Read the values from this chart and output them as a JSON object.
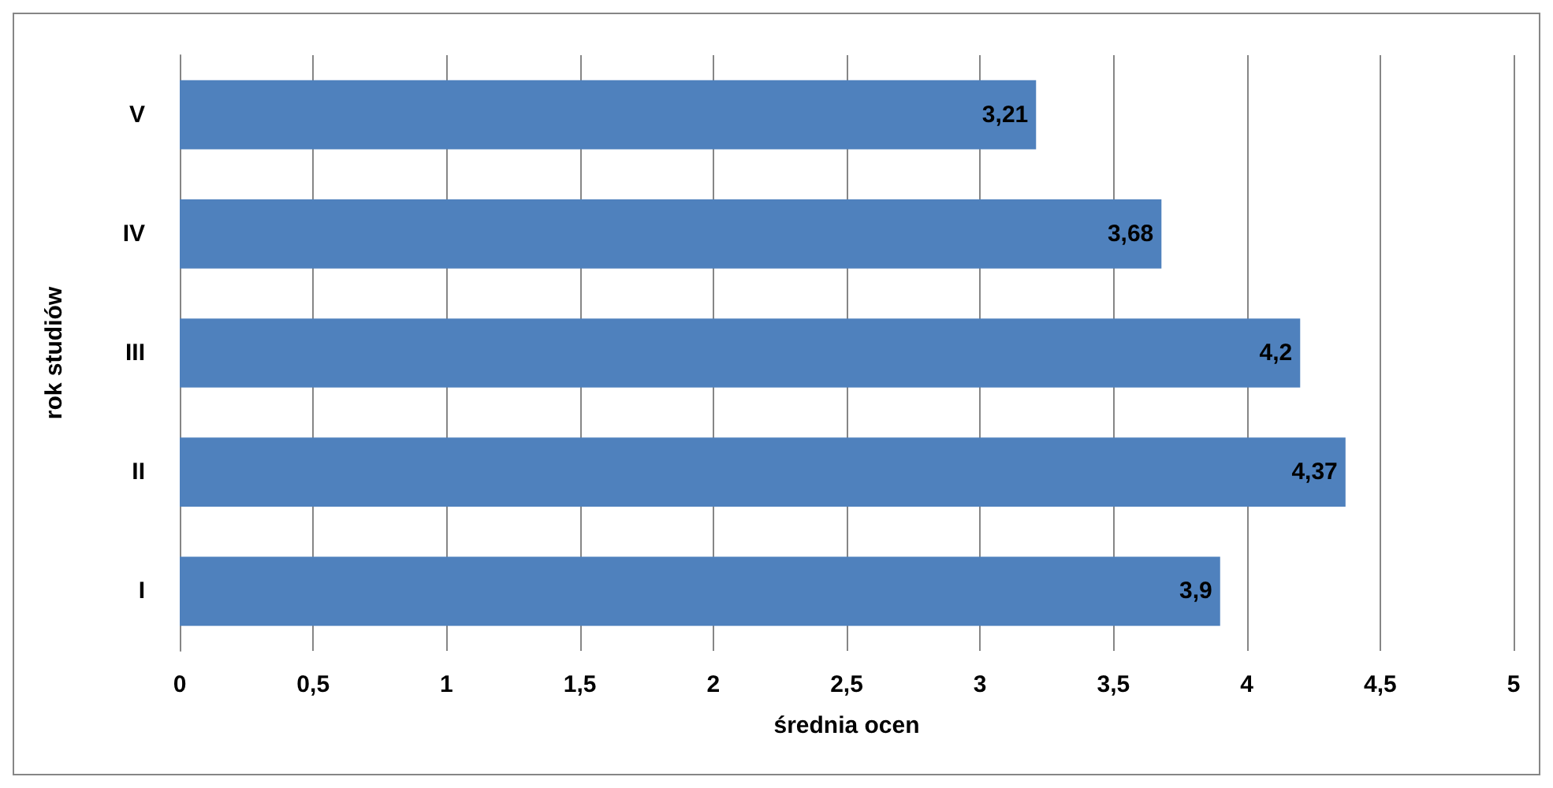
{
  "chart_data": {
    "type": "bar",
    "orientation": "horizontal",
    "xlabel": "średnia ocen",
    "ylabel": "rok studiów",
    "categories": [
      "V",
      "IV",
      "III",
      "II",
      "I"
    ],
    "values": [
      3.21,
      3.68,
      4.2,
      4.37,
      3.9
    ],
    "value_labels": [
      "3,21",
      "3,68",
      "4,2",
      "4,37",
      "3,9"
    ],
    "color": "#4f81bd",
    "xlim": [
      0,
      5
    ],
    "xticks": [
      0,
      {
        "value": 0.5,
        "label": "0,5"
      },
      1,
      {
        "value": 1.5,
        "label": "1,5"
      },
      2,
      {
        "value": 2.5,
        "label": "2,5"
      },
      3,
      {
        "value": 3.5,
        "label": "3,5"
      },
      4,
      {
        "value": 4.5,
        "label": "4,5"
      },
      5
    ],
    "grid": "x"
  }
}
